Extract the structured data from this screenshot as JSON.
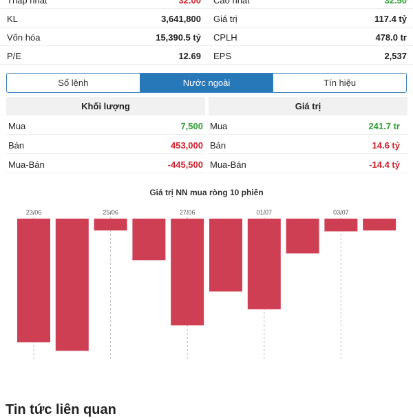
{
  "stats": [
    {
      "left_label": "Thấp nhất",
      "left_value": "32.00",
      "right_label": "Cao nhất",
      "right_value": "32.50"
    },
    {
      "left_label": "KL",
      "left_value": "3,641,800",
      "right_label": "Giá trị",
      "right_value": "117.4 tỷ"
    },
    {
      "left_label": "Vốn hóa",
      "left_value": "15,390.5 tỷ",
      "right_label": "CPLH",
      "right_value": "478.0 tr"
    },
    {
      "left_label": "P/E",
      "left_value": "12.69",
      "right_label": "EPS",
      "right_value": "2,537"
    }
  ],
  "tabs": [
    {
      "label": "Sổ lệnh",
      "active": false
    },
    {
      "label": "Nước ngoài",
      "active": true
    },
    {
      "label": "Tín hiệu",
      "active": false
    }
  ],
  "foreign": {
    "volume": {
      "header": "Khối lượng",
      "rows": [
        {
          "label": "Mua",
          "value": "7,500",
          "color": "#2e9e33"
        },
        {
          "label": "Bán",
          "value": "453,000",
          "color": "#cf1f2b"
        },
        {
          "label": "Mua-Bán",
          "value": "-445,500",
          "color": "#cf1f2b"
        }
      ]
    },
    "value": {
      "header": "Giá trị",
      "rows": [
        {
          "label": "Mua",
          "value": "241.7 tr",
          "color": "#2e9e33"
        },
        {
          "label": "Bán",
          "value": "14.6 tỷ",
          "color": "#cf1f2b"
        },
        {
          "label": "Mua-Bán",
          "value": "-14.4 tỷ",
          "color": "#cf1f2b"
        }
      ]
    }
  },
  "chart_data": {
    "type": "bar",
    "title": "Giá trị NN mua ròng 10 phiên",
    "categories": [
      "23/06",
      "",
      "25/06",
      "",
      "27/06",
      "",
      "01/07",
      "",
      "03/07",
      ""
    ],
    "values": [
      -14.6,
      -15.6,
      -1.4,
      -4.9,
      -12.6,
      -8.6,
      -10.7,
      -4.1,
      -1.5,
      -1.4
    ],
    "ylim": [
      -17.2,
      0
    ],
    "bar_color": "#cf3f53"
  },
  "bottom": {
    "text": "Tin tức liên quan"
  }
}
